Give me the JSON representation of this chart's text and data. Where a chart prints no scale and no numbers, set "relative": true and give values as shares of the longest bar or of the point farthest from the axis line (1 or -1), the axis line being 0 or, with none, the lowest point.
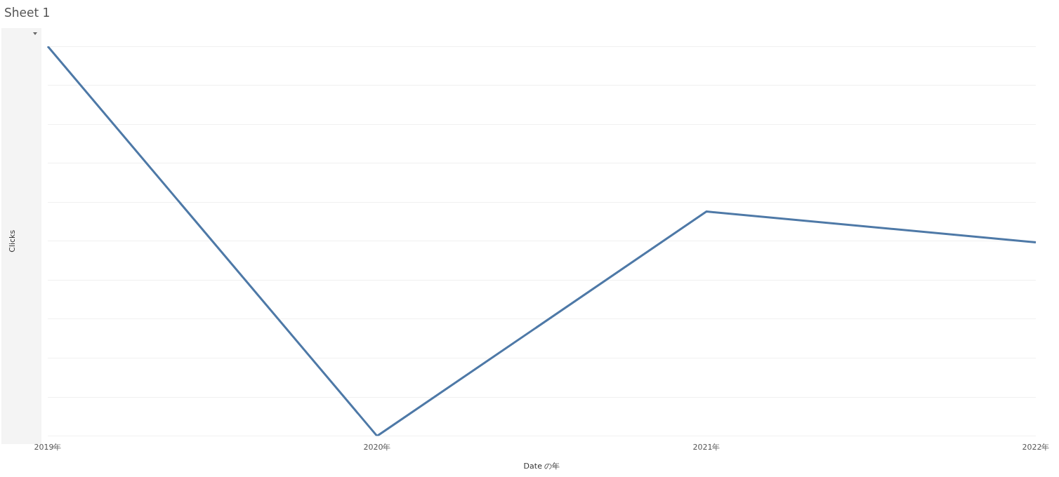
{
  "chart_data": {
    "type": "line",
    "title": "Sheet 1",
    "xlabel": "Date の年",
    "ylabel": "Clicks",
    "categories": [
      "2019年",
      "2020年",
      "2021年",
      "2022年"
    ],
    "series": [
      {
        "color": "#4e79a7",
        "values": [
          1,
          0,
          0.576,
          0.497
        ]
      }
    ],
    "relative": true,
    "grid": "y",
    "legend": false,
    "marker": "none",
    "line_style": "solid"
  }
}
